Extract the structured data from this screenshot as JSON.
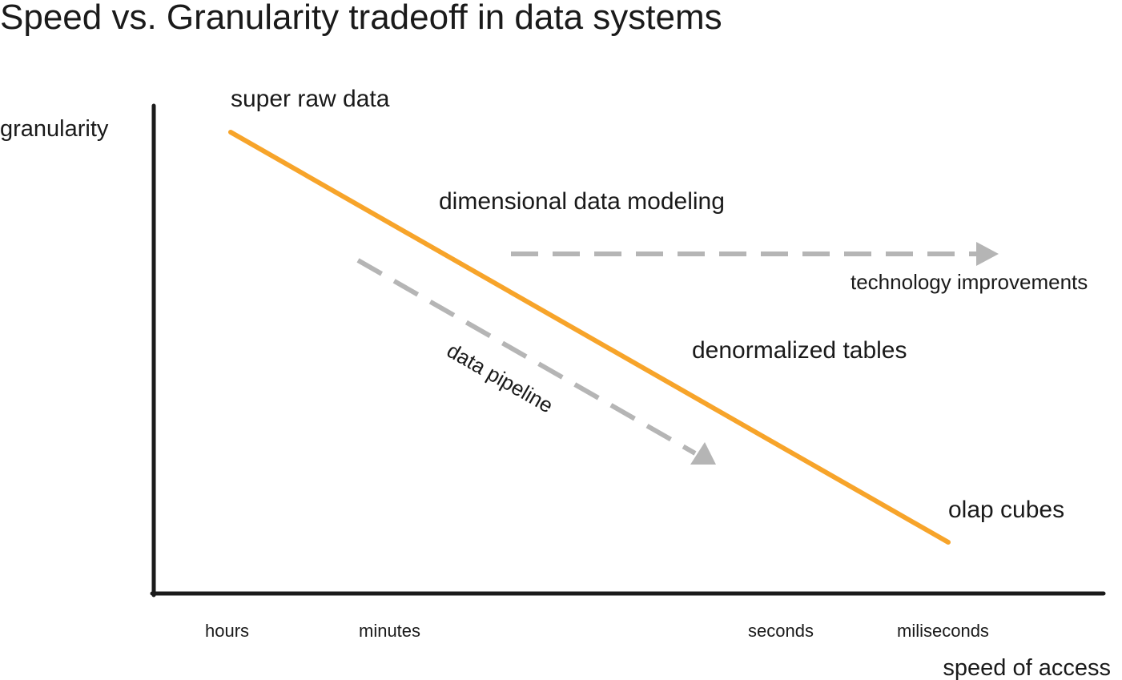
{
  "title": "Speed vs. Granularity tradeoff in data systems",
  "axes": {
    "y_label": "granularity",
    "x_label": "speed of access",
    "x_ticks": [
      "hours",
      "minutes",
      "seconds",
      "miliseconds"
    ]
  },
  "tradeoff_points": [
    "super raw data",
    "dimensional data modeling",
    "denormalized tables",
    "olap cubes"
  ],
  "arrows": {
    "data_pipeline": "data pipeline",
    "technology_improvements": "technology improvements"
  },
  "colors": {
    "tradeoff_line": "#F7A42A",
    "arrow": "#B5B5B5",
    "axis": "#1a1a1a"
  }
}
